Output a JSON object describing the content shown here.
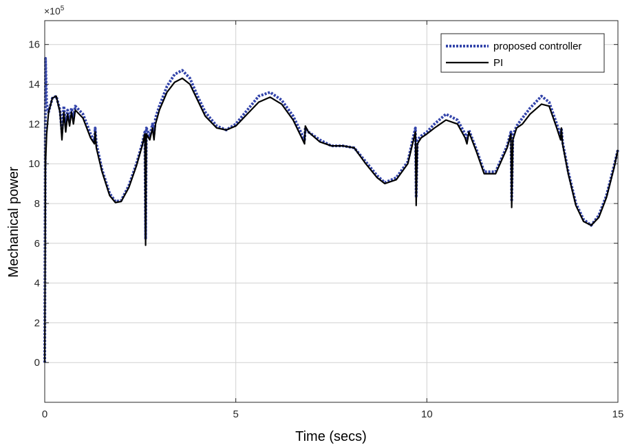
{
  "chart_data": {
    "type": "line",
    "xlabel": "Time (secs)",
    "ylabel": "Mechanical power",
    "y_multiplier": {
      "base": "×10",
      "exponent": "5"
    },
    "xlim": [
      0,
      15
    ],
    "ylim": [
      -2,
      17.2
    ],
    "x_ticks": [
      0,
      5,
      10,
      15
    ],
    "x_tick_labels": [
      "0",
      "5",
      "10",
      "15"
    ],
    "y_ticks": [
      0,
      2,
      4,
      6,
      8,
      10,
      12,
      14,
      16
    ],
    "y_tick_labels": [
      "0",
      "2",
      "4",
      "6",
      "8",
      "10",
      "12",
      "14",
      "16"
    ],
    "grid": true,
    "legend_position": "top-right",
    "colors": {
      "proposed": "#3344aa",
      "pi": "#000000",
      "grid": "#d0d0d0",
      "axes": "#262626"
    },
    "series": [
      {
        "name": "proposed controller",
        "style": "dotted",
        "x": [
          0,
          0.02,
          0.05,
          0.1,
          0.2,
          0.3,
          0.4,
          0.45,
          0.5,
          0.55,
          0.6,
          0.65,
          0.7,
          0.75,
          0.8,
          0.9,
          1.0,
          1.1,
          1.2,
          1.3,
          1.32,
          1.35,
          1.5,
          1.7,
          1.85,
          2.0,
          2.2,
          2.4,
          2.55,
          2.62,
          2.64,
          2.66,
          2.75,
          2.82,
          2.86,
          2.9,
          3.0,
          3.2,
          3.4,
          3.6,
          3.8,
          4.0,
          4.2,
          4.5,
          4.75,
          5.0,
          5.3,
          5.6,
          5.9,
          6.2,
          6.5,
          6.75,
          6.8,
          6.82,
          6.9,
          7.2,
          7.5,
          7.8,
          8.1,
          8.4,
          8.7,
          8.9,
          9.2,
          9.5,
          9.7,
          9.72,
          9.75,
          9.85,
          10.0,
          10.2,
          10.5,
          10.8,
          11.0,
          11.05,
          11.1,
          11.3,
          11.5,
          11.8,
          12.1,
          12.2,
          12.22,
          12.25,
          12.35,
          12.5,
          12.7,
          13.0,
          13.2,
          13.4,
          13.5,
          13.52,
          13.55,
          13.7,
          13.9,
          14.1,
          14.3,
          14.5,
          14.7,
          14.9,
          15.0
        ],
        "values": [
          0,
          15.3,
          13.0,
          12.6,
          13.3,
          13.4,
          12.7,
          11.6,
          12.9,
          11.9,
          12.7,
          12.2,
          12.8,
          12.3,
          12.9,
          12.7,
          12.5,
          12.0,
          11.5,
          11.1,
          11.8,
          11.0,
          9.7,
          8.5,
          8.1,
          8.15,
          8.9,
          10.0,
          11.0,
          11.6,
          6.2,
          11.8,
          11.4,
          12.0,
          11.5,
          12.3,
          12.9,
          13.9,
          14.5,
          14.7,
          14.3,
          13.4,
          12.6,
          11.9,
          11.7,
          12.0,
          12.7,
          13.4,
          13.6,
          13.2,
          12.4,
          11.4,
          11.2,
          11.8,
          11.6,
          11.2,
          10.9,
          10.9,
          10.8,
          10.1,
          9.4,
          9.05,
          9.3,
          10.1,
          11.8,
          8.3,
          11.2,
          11.4,
          11.6,
          12.0,
          12.5,
          12.2,
          11.5,
          11.2,
          11.7,
          10.7,
          9.6,
          9.6,
          10.9,
          11.6,
          8.1,
          11.4,
          11.9,
          12.3,
          12.8,
          13.4,
          13.1,
          12.0,
          11.4,
          11.8,
          11.1,
          9.6,
          8.0,
          7.2,
          6.9,
          7.4,
          8.4,
          9.9,
          10.7
        ]
      },
      {
        "name": "PI",
        "style": "solid",
        "x": [
          0,
          0.02,
          0.05,
          0.1,
          0.2,
          0.3,
          0.4,
          0.45,
          0.5,
          0.55,
          0.6,
          0.65,
          0.7,
          0.75,
          0.8,
          0.9,
          1.0,
          1.1,
          1.2,
          1.3,
          1.32,
          1.35,
          1.5,
          1.7,
          1.85,
          2.0,
          2.2,
          2.4,
          2.55,
          2.62,
          2.64,
          2.66,
          2.75,
          2.82,
          2.86,
          2.9,
          3.0,
          3.2,
          3.4,
          3.6,
          3.8,
          4.0,
          4.2,
          4.5,
          4.75,
          5.0,
          5.3,
          5.6,
          5.9,
          6.2,
          6.5,
          6.75,
          6.8,
          6.82,
          6.9,
          7.2,
          7.5,
          7.8,
          8.1,
          8.4,
          8.7,
          8.9,
          9.2,
          9.5,
          9.7,
          9.72,
          9.75,
          9.85,
          10.0,
          10.2,
          10.5,
          10.8,
          11.0,
          11.05,
          11.1,
          11.3,
          11.5,
          11.8,
          12.1,
          12.2,
          12.22,
          12.25,
          12.35,
          12.5,
          12.7,
          13.0,
          13.2,
          13.4,
          13.5,
          13.52,
          13.55,
          13.7,
          13.9,
          14.1,
          14.3,
          14.5,
          14.7,
          14.9,
          15.0
        ],
        "values": [
          0,
          10.0,
          11.5,
          12.6,
          13.3,
          13.4,
          12.6,
          11.2,
          12.6,
          11.6,
          12.5,
          11.9,
          12.6,
          12.0,
          12.7,
          12.5,
          12.3,
          11.8,
          11.3,
          11.0,
          11.6,
          10.8,
          9.6,
          8.4,
          8.05,
          8.1,
          8.8,
          9.9,
          10.9,
          11.5,
          5.9,
          11.5,
          11.2,
          11.8,
          11.2,
          12.0,
          12.7,
          13.6,
          14.1,
          14.3,
          14.0,
          13.2,
          12.4,
          11.8,
          11.7,
          11.9,
          12.5,
          13.1,
          13.35,
          13.0,
          12.2,
          11.2,
          11.0,
          11.9,
          11.6,
          11.1,
          10.9,
          10.9,
          10.8,
          10.0,
          9.3,
          9.0,
          9.2,
          10.0,
          11.6,
          7.9,
          11.0,
          11.3,
          11.5,
          11.8,
          12.2,
          12.0,
          11.3,
          11.0,
          11.6,
          10.6,
          9.5,
          9.5,
          10.8,
          11.5,
          7.8,
          11.2,
          11.8,
          12.0,
          12.5,
          13.0,
          12.9,
          11.8,
          11.2,
          11.8,
          11.0,
          9.5,
          7.9,
          7.1,
          6.9,
          7.3,
          8.3,
          9.8,
          10.7
        ]
      }
    ]
  }
}
